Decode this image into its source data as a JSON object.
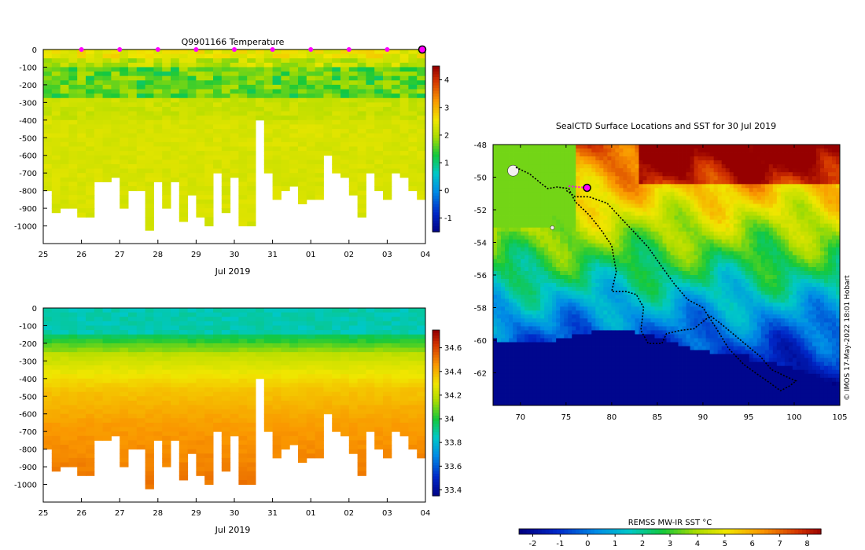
{
  "chart_data": [
    {
      "type": "heatmap",
      "title": "Q9901166  Temperature",
      "xlabel": "Jul 2019",
      "x_ticks": [
        "25",
        "26",
        "27",
        "28",
        "29",
        "30",
        "31",
        "01",
        "02",
        "03",
        "04"
      ],
      "y_ticks": [
        "0",
        "-100",
        "-200",
        "-300",
        "-400",
        "-500",
        "-600",
        "-700",
        "-800",
        "-900",
        "-1000"
      ],
      "ylim": [
        -1100,
        0
      ],
      "colorbar_ticks": [
        "4",
        "3",
        "2",
        "1",
        "0",
        "-1"
      ],
      "colorbar_range": [
        -1.5,
        4.5
      ],
      "surface_marker_days": [
        26,
        27,
        28,
        29,
        30,
        31,
        32,
        33,
        34
      ],
      "current_marker_day": 35,
      "max_depth_per_profile": [
        -800,
        -920,
        -880,
        -880,
        -950,
        -950,
        -730,
        -730,
        -720,
        -880,
        -790,
        -800,
        -1010,
        -740,
        -880,
        -740,
        -970,
        -820,
        -950,
        -1000,
        -700,
        -920,
        -720,
        -980,
        -980,
        -400,
        -700,
        -830,
        -780,
        -770,
        -870,
        -830,
        -830,
        -600,
        -680,
        -720,
        -820,
        -950,
        -700,
        -800,
        -850,
        -700,
        -710,
        -780,
        -840
      ]
    },
    {
      "type": "heatmap",
      "title": "",
      "xlabel": "Jul 2019",
      "x_ticks": [
        "25",
        "26",
        "27",
        "28",
        "29",
        "30",
        "31",
        "01",
        "02",
        "03",
        "04"
      ],
      "y_ticks": [
        "0",
        "-100",
        "-200",
        "-300",
        "-400",
        "-500",
        "-600",
        "-700",
        "-800",
        "-900",
        "-1000"
      ],
      "ylim": [
        -1100,
        0
      ],
      "colorbar_ticks": [
        "34.6",
        "34.4",
        "34.2",
        "34",
        "33.8",
        "33.6",
        "33.4"
      ],
      "colorbar_range": [
        33.35,
        34.75
      ]
    },
    {
      "type": "map",
      "title": "SealCTD Surface Locations and SST for 30 Jul 2019",
      "x_ticks": [
        "70",
        "75",
        "80",
        "85",
        "90",
        "95",
        "100",
        "105"
      ],
      "y_ticks": [
        "-48",
        "-50",
        "-52",
        "-54",
        "-56",
        "-58",
        "-60",
        "-62"
      ],
      "lon_range": [
        67,
        105
      ],
      "lat_range": [
        -64,
        -48
      ],
      "current_position": [
        77.3,
        -50.65
      ],
      "colorbar_label": "REMSS MW-IR SST °C",
      "colorbar_ticks": [
        "-2",
        "-1",
        "0",
        "1",
        "2",
        "3",
        "4",
        "5",
        "6",
        "7",
        "8"
      ],
      "colorbar_range": [
        -2.5,
        8.5
      ],
      "track": [
        [
          69.5,
          -49.4
        ],
        [
          71,
          -49.8
        ],
        [
          72.3,
          -50.4
        ],
        [
          73,
          -50.7
        ],
        [
          74,
          -50.6
        ],
        [
          75.3,
          -50.7
        ],
        [
          76,
          -51.5
        ],
        [
          77.5,
          -52.3
        ],
        [
          78.8,
          -53.2
        ],
        [
          80,
          -54.2
        ],
        [
          80.5,
          -55.8
        ],
        [
          80,
          -57
        ],
        [
          81.5,
          -57
        ],
        [
          82.7,
          -57.2
        ],
        [
          83.5,
          -58
        ],
        [
          83.2,
          -59.4
        ],
        [
          84,
          -60.2
        ],
        [
          85.5,
          -60.2
        ],
        [
          86,
          -59.6
        ],
        [
          87.5,
          -59.4
        ],
        [
          89,
          -59.3
        ],
        [
          90.8,
          -58.5
        ],
        [
          92,
          -59
        ],
        [
          93.5,
          -59.7
        ],
        [
          95,
          -60.4
        ],
        [
          96.3,
          -61
        ],
        [
          97.5,
          -61.8
        ],
        [
          99,
          -62.2
        ],
        [
          100.2,
          -62.5
        ],
        [
          99.5,
          -62.8
        ],
        [
          98.5,
          -63.1
        ],
        [
          97.3,
          -62.6
        ],
        [
          96,
          -62.1
        ],
        [
          94.5,
          -61.5
        ],
        [
          92.8,
          -60.5
        ],
        [
          91.5,
          -59.3
        ],
        [
          90,
          -58
        ],
        [
          88.3,
          -57.5
        ],
        [
          86.8,
          -56.5
        ],
        [
          85.5,
          -55.5
        ],
        [
          84,
          -54.3
        ],
        [
          82.5,
          -53.4
        ],
        [
          81,
          -52.5
        ],
        [
          79.5,
          -51.6
        ],
        [
          77.5,
          -51.2
        ],
        [
          76,
          -51.2
        ],
        [
          75,
          -50.8
        ]
      ],
      "recent_track": [
        [
          75.3,
          -50.55
        ],
        [
          76.3,
          -50.6
        ],
        [
          77.3,
          -50.65
        ]
      ]
    }
  ],
  "side_note": "© IMOS 17-May-2022 18:01 Hobart"
}
